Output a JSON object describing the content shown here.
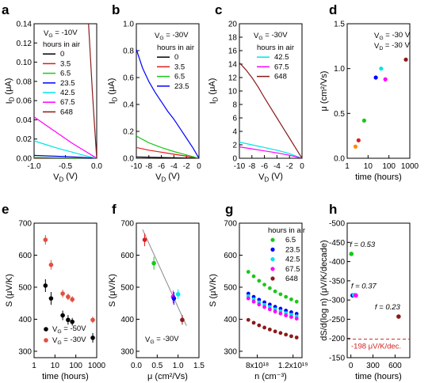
{
  "chart_data": [
    {
      "panel": "a",
      "type": "line",
      "xlabel": "V_D (V)",
      "ylabel": "I_D (μA)",
      "xlim": [
        -1.0,
        0.0
      ],
      "ylim": [
        0.0,
        0.14
      ],
      "xticks": [
        -1.0,
        -0.5,
        0.0
      ],
      "xticklabels": [
        "-1.0",
        "-0.5",
        "0.0"
      ],
      "yticks": [
        0.0,
        0.02,
        0.04,
        0.06,
        0.08,
        0.1,
        0.12,
        0.14
      ],
      "yticklabels": [
        "0.00",
        "0.02",
        "0.04",
        "0.06",
        "0.08",
        "0.10",
        "0.12",
        "0.14"
      ],
      "annotation": "V_G = -10V",
      "legend_title": "hours in air",
      "legend_placement": "top-left",
      "series": [
        {
          "name": "0",
          "color": "#000000",
          "x": [
            -1.0,
            -0.5,
            0.0
          ],
          "y": [
            0.0,
            0.0,
            0.0
          ]
        },
        {
          "name": "3.5",
          "color": "#e31a1c",
          "x": [
            -1.0,
            -0.5,
            0.0
          ],
          "y": [
            0.0,
            0.0,
            0.0
          ]
        },
        {
          "name": "6.5",
          "color": "#19c819",
          "x": [
            -1.0,
            -0.5,
            -0.2,
            0.0
          ],
          "y": [
            0.001,
            0.0006,
            0.0003,
            0.0
          ]
        },
        {
          "name": "23.5",
          "color": "#0000ff",
          "x": [
            -1.0,
            -0.5,
            -0.2,
            0.0
          ],
          "y": [
            0.003,
            0.0018,
            0.0008,
            0.0
          ]
        },
        {
          "name": "42.5",
          "color": "#00e5e5",
          "x": [
            -1.0,
            -0.8,
            -0.6,
            -0.4,
            -0.2,
            0.0
          ],
          "y": [
            0.018,
            0.014,
            0.01,
            0.0065,
            0.003,
            0.0
          ]
        },
        {
          "name": "67.5",
          "color": "#ff00ff",
          "x": [
            -1.0,
            -0.8,
            -0.6,
            -0.4,
            -0.2,
            0.0
          ],
          "y": [
            0.043,
            0.034,
            0.025,
            0.016,
            0.008,
            0.0
          ]
        },
        {
          "name": "648",
          "color": "#8b1a1a",
          "x": [
            -0.13,
            -0.1,
            -0.07,
            -0.04,
            0.0
          ],
          "y": [
            0.14,
            0.105,
            0.07,
            0.04,
            0.0
          ]
        }
      ]
    },
    {
      "panel": "b",
      "type": "line",
      "xlabel": "V_D (V)",
      "ylabel": "I_D (μA)",
      "xlim": [
        -10,
        0
      ],
      "ylim": [
        0.0,
        1.0
      ],
      "xticks": [
        -10,
        -8,
        -6,
        -4,
        -2,
        0
      ],
      "xticklabels": [
        "-10",
        "-8",
        "-6",
        "-4",
        "-2",
        "0"
      ],
      "yticks": [
        0.0,
        0.2,
        0.4,
        0.6,
        0.8,
        1.0
      ],
      "yticklabels": [
        "0.0",
        "0.2",
        "0.4",
        "0.6",
        "0.8",
        "1.0"
      ],
      "annotation": "V_G = -30V",
      "legend_title": "hours in air",
      "legend_placement": "top-right",
      "series": [
        {
          "name": "0",
          "color": "#000000",
          "x": [
            -10,
            -5,
            0
          ],
          "y": [
            0.01,
            0.005,
            0.0
          ]
        },
        {
          "name": "3.5",
          "color": "#e31a1c",
          "x": [
            -10,
            -8,
            -6,
            -4,
            -2,
            0
          ],
          "y": [
            0.08,
            0.06,
            0.045,
            0.03,
            0.015,
            0.0
          ]
        },
        {
          "name": "6.5",
          "color": "#19c819",
          "x": [
            -10,
            -8,
            -6,
            -4,
            -2,
            0
          ],
          "y": [
            0.165,
            0.115,
            0.08,
            0.05,
            0.025,
            0.0
          ]
        },
        {
          "name": "23.5",
          "color": "#0000ff",
          "x": [
            -10,
            -9,
            -8,
            -7,
            -6,
            -5,
            -4,
            -3,
            -2,
            -1,
            0
          ],
          "y": [
            0.81,
            0.67,
            0.57,
            0.49,
            0.42,
            0.35,
            0.29,
            0.22,
            0.15,
            0.08,
            0.0
          ]
        }
      ]
    },
    {
      "panel": "c",
      "type": "line",
      "xlabel": "V_D (V)",
      "ylabel": "I_D (μA)",
      "xlim": [
        -10,
        0
      ],
      "ylim": [
        0,
        20
      ],
      "xticks": [
        -10,
        -8,
        -6,
        -4,
        -2,
        0
      ],
      "xticklabels": [
        "-10",
        "-8",
        "-6",
        "-4",
        "-2",
        "0"
      ],
      "yticks": [
        0,
        2,
        4,
        6,
        8,
        10,
        12,
        14,
        16,
        18,
        20
      ],
      "yticklabels": [
        "0",
        "2",
        "4",
        "6",
        "8",
        "10",
        "12",
        "14",
        "16",
        "18",
        "20"
      ],
      "annotation": "V_G = -30V",
      "legend_title": "hours in air",
      "legend_placement": "top-right",
      "series": [
        {
          "name": "42.5",
          "color": "#00e5e5",
          "x": [
            -10,
            -8,
            -6,
            -4,
            -2,
            0
          ],
          "y": [
            2.4,
            2.0,
            1.6,
            1.2,
            0.7,
            0.0
          ]
        },
        {
          "name": "67.5",
          "color": "#ff00ff",
          "x": [
            -10,
            -8,
            -6,
            -4,
            -2,
            0
          ],
          "y": [
            1.7,
            1.4,
            1.1,
            0.8,
            0.45,
            0.0
          ]
        },
        {
          "name": "648",
          "color": "#8b1a1a",
          "x": [
            -10,
            -9,
            -8,
            -7,
            -6,
            -5,
            -4,
            -3,
            -2,
            -1,
            0
          ],
          "y": [
            14.2,
            13.2,
            12.0,
            10.6,
            9.0,
            7.5,
            6.0,
            4.5,
            3.0,
            1.5,
            0.0
          ]
        }
      ]
    },
    {
      "panel": "d",
      "type": "scatter",
      "xscale": "log",
      "xlabel": "time (hours)",
      "ylabel": "μ (cm²/Vs)",
      "xlim": [
        1,
        1000
      ],
      "ylim": [
        0.0,
        1.5
      ],
      "xticks": [
        1,
        10,
        100,
        1000
      ],
      "xticklabels": [
        "1",
        "10",
        "100",
        "1000"
      ],
      "yticks": [
        0.0,
        0.5,
        1.0,
        1.5
      ],
      "yticklabels": [
        "0.0",
        "0.5",
        "1.0",
        "1.5"
      ],
      "annotations": [
        "V_G = -30 V",
        "V_D = -30 V"
      ],
      "points": [
        {
          "x": 2.5,
          "y": 0.13,
          "color": "#ff8c00"
        },
        {
          "x": 3.5,
          "y": 0.2,
          "color": "#e31a1c"
        },
        {
          "x": 6.5,
          "y": 0.42,
          "color": "#19c819"
        },
        {
          "x": 23.5,
          "y": 0.9,
          "color": "#0000ff"
        },
        {
          "x": 42.5,
          "y": 1.0,
          "color": "#00e5e5"
        },
        {
          "x": 67.5,
          "y": 0.88,
          "color": "#ff00ff"
        },
        {
          "x": 648,
          "y": 1.1,
          "color": "#8b1a1a"
        }
      ]
    },
    {
      "panel": "e",
      "type": "scatter",
      "xscale": "log",
      "xlabel": "time (hours)",
      "ylabel": "S (μV/K)",
      "xlim": [
        1,
        1000
      ],
      "ylim": [
        280,
        700
      ],
      "xticks": [
        1,
        10,
        100,
        1000
      ],
      "xticklabels": [
        "1",
        "10",
        "100",
        "1000"
      ],
      "yticks": [
        300,
        400,
        500,
        600,
        700
      ],
      "yticklabels": [
        "300",
        "400",
        "500",
        "600",
        "700"
      ],
      "legend_placement": "bottom-left",
      "series": [
        {
          "name": "V_G = -50V",
          "color": "#000000",
          "x": [
            3.5,
            6.5,
            23.5,
            42.5,
            67.5,
            648
          ],
          "y": [
            505,
            465,
            412,
            398,
            392,
            342
          ],
          "err": [
            20,
            20,
            15,
            15,
            12,
            15
          ]
        },
        {
          "name": "V_G = -30V",
          "color": "#e05040",
          "x": [
            3.5,
            6.5,
            23.5,
            42.5,
            67.5,
            648
          ],
          "y": [
            648,
            570,
            480,
            470,
            462,
            398
          ],
          "err": [
            15,
            15,
            12,
            10,
            10,
            10
          ]
        }
      ]
    },
    {
      "panel": "f",
      "type": "scatter",
      "xlabel": "μ (cm²/Vs)",
      "ylabel": "S (μV/K)",
      "xlim": [
        0.0,
        1.5
      ],
      "ylim": [
        280,
        700
      ],
      "xticks": [
        0.0,
        0.5,
        1.0,
        1.5
      ],
      "xticklabels": [
        "0.0",
        "0.5",
        "1.0",
        "1.5"
      ],
      "yticks": [
        300,
        400,
        500,
        600,
        700
      ],
      "yticklabels": [
        "300",
        "400",
        "500",
        "600",
        "700"
      ],
      "annotation": "V_G = -30V",
      "trendline": {
        "x": [
          0.15,
          1.2
        ],
        "y": [
          680,
          380
        ],
        "color": "#888888"
      },
      "points": [
        {
          "x": 0.2,
          "y": 648,
          "err": 20,
          "color": "#e31a1c"
        },
        {
          "x": 0.42,
          "y": 575,
          "err": 20,
          "color": "#19c819"
        },
        {
          "x": 0.88,
          "y": 470,
          "err": 20,
          "color": "#ff00ff"
        },
        {
          "x": 0.9,
          "y": 465,
          "err": 20,
          "color": "#0000ff"
        },
        {
          "x": 1.0,
          "y": 478,
          "err": 15,
          "color": "#00e5e5"
        },
        {
          "x": 1.1,
          "y": 398,
          "err": 15,
          "color": "#8b1a1a"
        }
      ]
    },
    {
      "panel": "g",
      "type": "scatter",
      "xlabel": "n (cm⁻³)",
      "ylabel": "S (μV/K)",
      "xlim": [
        6e+18,
        1.3e+19
      ],
      "ylim": [
        280,
        700
      ],
      "xticks": [
        8e+18,
        1.2e+19
      ],
      "xticklabels": [
        "8x10¹⁸",
        "1.2x10¹⁹"
      ],
      "yticks": [
        300,
        400,
        500,
        600,
        700
      ],
      "yticklabels": [
        "300",
        "400",
        "500",
        "600",
        "700"
      ],
      "legend_title": "hours in air",
      "legend_placement": "top-right",
      "series": [
        {
          "name": "6.5",
          "color": "#19c819",
          "x": [
            7e+18,
            7.6e+18,
            8.2e+18,
            8.8e+18,
            9.4e+18,
            1e+19,
            1.06e+19,
            1.12e+19,
            1.18e+19,
            1.24e+19
          ],
          "y": [
            548,
            534,
            520,
            508,
            497,
            487,
            478,
            470,
            462,
            455
          ]
        },
        {
          "name": "23.5",
          "color": "#0000ff",
          "x": [
            7e+18,
            7.6e+18,
            8.2e+18,
            8.8e+18,
            9.4e+18,
            1e+19,
            1.06e+19,
            1.12e+19,
            1.18e+19,
            1.24e+19
          ],
          "y": [
            480,
            470,
            461,
            453,
            446,
            439,
            433,
            427,
            422,
            417
          ]
        },
        {
          "name": "42.5",
          "color": "#00e5e5",
          "x": [
            7e+18,
            7.6e+18,
            8.2e+18,
            8.8e+18,
            9.4e+18,
            1e+19,
            1.06e+19,
            1.12e+19,
            1.18e+19,
            1.24e+19
          ],
          "y": [
            472,
            462,
            453,
            445,
            438,
            431,
            425,
            419,
            414,
            409
          ]
        },
        {
          "name": "67.5",
          "color": "#ff00ff",
          "x": [
            7e+18,
            7.6e+18,
            8.2e+18,
            8.8e+18,
            9.4e+18,
            1e+19,
            1.06e+19,
            1.12e+19,
            1.18e+19,
            1.24e+19
          ],
          "y": [
            465,
            455,
            446,
            438,
            431,
            424,
            418,
            412,
            407,
            402
          ]
        },
        {
          "name": "648",
          "color": "#8b1a1a",
          "x": [
            7e+18,
            7.6e+18,
            8.2e+18,
            8.8e+18,
            9.4e+18,
            1e+19,
            1.06e+19,
            1.12e+19,
            1.18e+19,
            1.24e+19
          ],
          "y": [
            398,
            389,
            381,
            374,
            368,
            362,
            357,
            352,
            347,
            343
          ]
        }
      ]
    },
    {
      "panel": "h",
      "type": "scatter",
      "xlabel": "time (hours)",
      "ylabel": "dS/d(log n) (μV/K/decade)",
      "xlim": [
        -50,
        800
      ],
      "ylim": [
        -500,
        -150
      ],
      "y_inverted": true,
      "xticks": [
        0,
        300,
        600
      ],
      "xticklabels": [
        "0",
        "300",
        "600"
      ],
      "yticks": [
        -500,
        -450,
        -400,
        -350,
        -300,
        -250,
        -200,
        -150
      ],
      "yticklabels": [
        "-500",
        "-450",
        "-400",
        "-350",
        "-300",
        "-250",
        "-200",
        "-150"
      ],
      "reference_line": {
        "y": -198,
        "label": "-198 μV/K/dec.",
        "color": "#d42020"
      },
      "points": [
        {
          "x": 6.5,
          "y": -420,
          "color": "#19c819",
          "label": "f = 0.53"
        },
        {
          "x": 23.5,
          "y": -312,
          "color": "#0000ff",
          "label": "f = 0.37"
        },
        {
          "x": 42.5,
          "y": -313,
          "color": "#00e5e5",
          "label": ""
        },
        {
          "x": 67.5,
          "y": -312,
          "color": "#ff00ff",
          "label": ""
        },
        {
          "x": 648,
          "y": -257,
          "color": "#8b1a1a",
          "label": "f = 0.23"
        }
      ]
    }
  ]
}
